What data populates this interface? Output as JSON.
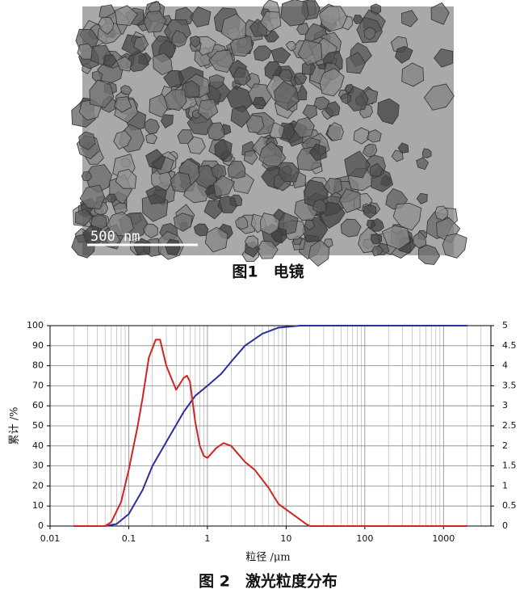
{
  "figure1": {
    "scale_label": "500 nm",
    "caption": "图1　电镜"
  },
  "chart_data": {
    "type": "line",
    "caption": "图 2　激光粒度分布",
    "xlabel": "粒径 /μm",
    "ylabel": "累计 /%",
    "xscale": "log",
    "grid": true,
    "xlim": [
      0.01,
      4000
    ],
    "xticks": [
      0.01,
      0.1,
      1,
      10,
      100,
      1000
    ],
    "ylim": [
      0,
      100
    ],
    "yticks": [
      0,
      10,
      20,
      30,
      40,
      50,
      60,
      70,
      80,
      90,
      100
    ],
    "y2lim": [
      0,
      5
    ],
    "y2ticks": [
      0,
      0.5,
      1,
      1.5,
      2,
      2.5,
      3,
      3.5,
      4,
      4.5,
      5
    ],
    "series": [
      {
        "color": "#2b2f9a",
        "axis": "y",
        "x": [
          0.02,
          0.05,
          0.07,
          0.1,
          0.15,
          0.2,
          0.3,
          0.5,
          0.7,
          1,
          1.5,
          2,
          3,
          5,
          8,
          15,
          100,
          2000
        ],
        "values": [
          0,
          0,
          1,
          6,
          18,
          30,
          42,
          57,
          65,
          70,
          76,
          82,
          90,
          96,
          99,
          100,
          100,
          100
        ]
      },
      {
        "color": "#d42323",
        "axis": "y2",
        "x": [
          0.02,
          0.05,
          0.06,
          0.08,
          0.1,
          0.13,
          0.15,
          0.18,
          0.22,
          0.25,
          0.3,
          0.4,
          0.5,
          0.55,
          0.6,
          0.7,
          0.8,
          0.9,
          1,
          1.3,
          1.6,
          2,
          3,
          4,
          6,
          8,
          12,
          18,
          20,
          100,
          2000
        ],
        "values": [
          0,
          0,
          0.1,
          0.6,
          1.4,
          2.5,
          3.2,
          4.2,
          4.65,
          4.65,
          4.0,
          3.4,
          3.7,
          3.75,
          3.6,
          2.6,
          2.0,
          1.75,
          1.7,
          1.95,
          2.07,
          2.0,
          1.6,
          1.4,
          0.95,
          0.55,
          0.3,
          0.05,
          0,
          0,
          0
        ]
      }
    ]
  }
}
